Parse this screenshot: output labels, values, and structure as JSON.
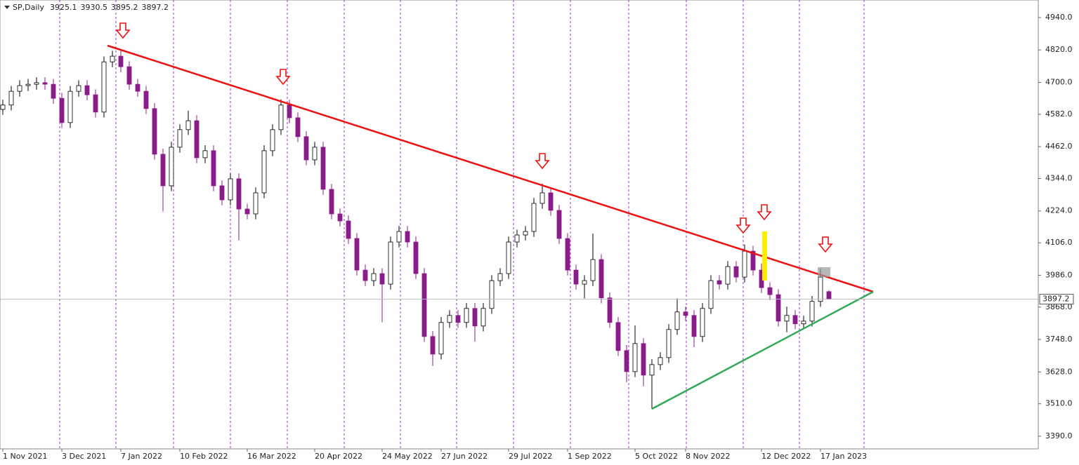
{
  "chart_data": {
    "type": "candlestick",
    "title": "SP,Daily",
    "categories": [
      "1 Nov 2021",
      null,
      null,
      null,
      null,
      null,
      null,
      "3 Dec 2021",
      null,
      null,
      null,
      null,
      null,
      null,
      "7 Jan 2022",
      null,
      null,
      null,
      null,
      null,
      null,
      "10 Feb 2022",
      null,
      null,
      null,
      null,
      null,
      null,
      null,
      "16 Mar 2022",
      null,
      null,
      null,
      null,
      null,
      null,
      null,
      "20 Apr 2022",
      null,
      null,
      null,
      null,
      null,
      null,
      null,
      "24 May 2022",
      null,
      null,
      null,
      null,
      null,
      null,
      "27 Jun 2022",
      null,
      null,
      null,
      null,
      null,
      null,
      null,
      "29 Jul 2022",
      null,
      null,
      null,
      null,
      null,
      null,
      "1 Sep 2022",
      null,
      null,
      null,
      null,
      null,
      null,
      null,
      "5 Oct 2022",
      null,
      null,
      null,
      null,
      null,
      "8 Nov 2022",
      null,
      null,
      null,
      null,
      null,
      null,
      null,
      null,
      "12 Dec 2022",
      null,
      null,
      null,
      null,
      null,
      null,
      "17 Jan 2023",
      null
    ],
    "open": [
      4600,
      4616,
      4667,
      4688,
      4693,
      4699,
      4693,
      4641,
      4551,
      4667,
      4688,
      4654,
      4590,
      4776,
      4797,
      4758,
      4693,
      4667,
      4603,
      4434,
      4317,
      4460,
      4525,
      4558,
      4421,
      4447,
      4317,
      4265,
      4343,
      4231,
      4213,
      4291,
      4447,
      4525,
      4616,
      4569,
      4499,
      4413,
      4460,
      4304,
      4213,
      4187,
      4122,
      4005,
      3966,
      3992,
      3953,
      4109,
      4148,
      4109,
      3992,
      3759,
      3694,
      3811,
      3837,
      3811,
      3863,
      3798,
      3863,
      3966,
      3992,
      4109,
      4135,
      4148,
      4252,
      4291,
      4226,
      4122,
      4005,
      3953,
      3966,
      4044,
      3902,
      3811,
      3707,
      3629,
      3733,
      3616,
      3655,
      3681,
      3785,
      3850,
      3837,
      3759,
      3863,
      3966,
      3953,
      4018,
      3979,
      4075,
      4005,
      3940,
      3914,
      3816,
      3837,
      3806,
      3816,
      3889,
      3925.1
    ],
    "high": [
      4636,
      4687,
      4708,
      4713,
      4719,
      4719,
      4713,
      4661,
      4687,
      4708,
      4708,
      4674,
      4796,
      4817,
      4817,
      4778,
      4713,
      4687,
      4623,
      4454,
      4480,
      4545,
      4595,
      4578,
      4467,
      4467,
      4337,
      4363,
      4363,
      4251,
      4311,
      4467,
      4545,
      4637,
      4636,
      4589,
      4519,
      4480,
      4480,
      4324,
      4233,
      4207,
      4142,
      4025,
      4012,
      4012,
      4129,
      4168,
      4168,
      4129,
      4012,
      3779,
      3831,
      3857,
      3857,
      3883,
      3883,
      3883,
      3986,
      4012,
      4129,
      4155,
      4168,
      4272,
      4325,
      4311,
      4246,
      4142,
      4025,
      3986,
      4140,
      4064,
      3922,
      3831,
      3727,
      3800,
      3753,
      3675,
      3701,
      3805,
      3900,
      3870,
      3857,
      3883,
      3986,
      3986,
      4038,
      4038,
      4100,
      4095,
      4030,
      3960,
      3934,
      3870,
      3857,
      3836,
      3909,
      4010,
      3930.5
    ],
    "low": [
      4580,
      4596,
      4647,
      4668,
      4673,
      4673,
      4621,
      4531,
      4531,
      4647,
      4634,
      4570,
      4570,
      4756,
      4738,
      4673,
      4647,
      4583,
      4414,
      4222,
      4297,
      4440,
      4505,
      4401,
      4401,
      4297,
      4245,
      4245,
      4115,
      4193,
      4193,
      4271,
      4427,
      4505,
      4549,
      4479,
      4393,
      4393,
      4284,
      4193,
      4167,
      4102,
      3985,
      3946,
      3946,
      3812,
      3933,
      4089,
      4089,
      3972,
      3739,
      3650,
      3674,
      3791,
      3791,
      3791,
      3740,
      3778,
      3843,
      3946,
      3972,
      4089,
      4115,
      4128,
      4232,
      4206,
      4102,
      3985,
      3933,
      3900,
      3946,
      3882,
      3791,
      3687,
      3590,
      3609,
      3575,
      3491,
      3635,
      3661,
      3765,
      3817,
      3720,
      3739,
      3843,
      3933,
      3933,
      3959,
      3959,
      3985,
      3920,
      3894,
      3796,
      3775,
      3786,
      3786,
      3796,
      3869,
      3895.2
    ],
    "close": [
      4616,
      4667,
      4688,
      4693,
      4699,
      4693,
      4641,
      4551,
      4667,
      4688,
      4654,
      4590,
      4776,
      4797,
      4758,
      4693,
      4667,
      4603,
      4434,
      4317,
      4460,
      4525,
      4558,
      4421,
      4447,
      4317,
      4265,
      4343,
      4231,
      4213,
      4291,
      4447,
      4525,
      4616,
      4569,
      4499,
      4413,
      4460,
      4304,
      4213,
      4187,
      4122,
      4005,
      3966,
      3992,
      3953,
      4109,
      4148,
      4109,
      3992,
      3759,
      3694,
      3811,
      3837,
      3811,
      3863,
      3798,
      3863,
      3966,
      3992,
      4109,
      4135,
      4148,
      4252,
      4291,
      4226,
      4122,
      4005,
      3953,
      3966,
      4044,
      3902,
      3811,
      3707,
      3629,
      3733,
      3616,
      3655,
      3681,
      3785,
      3850,
      3837,
      3759,
      3863,
      3966,
      3953,
      4018,
      3979,
      4075,
      4005,
      3940,
      3914,
      3816,
      3837,
      3806,
      3816,
      3889,
      3979,
      3897.2
    ],
    "up_color": "#ffffff",
    "down_color": "#8b1a8b",
    "ylim": [
      3343,
      5005
    ],
    "yticks": [
      {
        "value": 4940,
        "label": "4940.0"
      },
      {
        "value": 4820,
        "label": "4820.0"
      },
      {
        "value": 4700,
        "label": "4700.0"
      },
      {
        "value": 4582,
        "label": "4582.0"
      },
      {
        "value": 4462,
        "label": "4462.0"
      },
      {
        "value": 4344,
        "label": "4344.0"
      },
      {
        "value": 4224,
        "label": "4224.0"
      },
      {
        "value": 4106,
        "label": "4106.0"
      },
      {
        "value": 3986,
        "label": "3986.0"
      },
      {
        "value": 3868,
        "label": "3868.0"
      },
      {
        "value": 3748,
        "label": "3748.0"
      },
      {
        "value": 3628,
        "label": "3628.0"
      },
      {
        "value": 3510,
        "label": "3510.0"
      },
      {
        "value": 3390,
        "label": "3390.0"
      }
    ]
  }
}
